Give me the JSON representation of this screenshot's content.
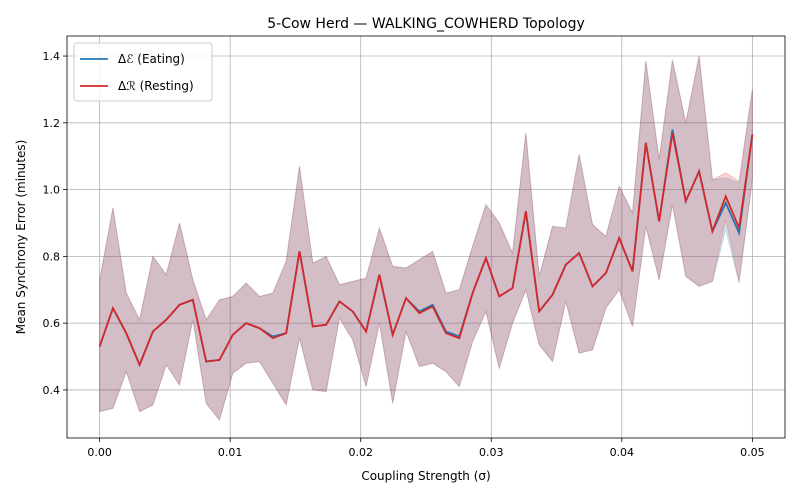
{
  "chart_data": {
    "type": "line",
    "title": "5-Cow Herd — WALKING_COWHERD Topology",
    "xlabel": "Coupling Strength (σ)",
    "ylabel": "Mean Synchrony Error (minutes)",
    "x": [
      0,
      0.00102,
      0.00204,
      0.00306,
      0.00408,
      0.0051,
      0.00612,
      0.00714,
      0.00816,
      0.00918,
      0.0102,
      0.01122,
      0.01224,
      0.01327,
      0.01429,
      0.01531,
      0.01633,
      0.01735,
      0.01837,
      0.01939,
      0.02041,
      0.02143,
      0.02245,
      0.02347,
      0.02449,
      0.02551,
      0.02653,
      0.02755,
      0.02857,
      0.02959,
      0.03061,
      0.03163,
      0.03265,
      0.03367,
      0.03469,
      0.03571,
      0.03673,
      0.03776,
      0.03878,
      0.0398,
      0.04082,
      0.04184,
      0.04286,
      0.04388,
      0.0449,
      0.04592,
      0.04694,
      0.04796,
      0.04898,
      0.05
    ],
    "series": [
      {
        "name": "Δℰ (Eating)",
        "color": "#1f77b4",
        "values": [
          0.53,
          0.645,
          0.57,
          0.475,
          0.575,
          0.61,
          0.655,
          0.67,
          0.485,
          0.49,
          0.565,
          0.6,
          0.585,
          0.56,
          0.57,
          0.815,
          0.59,
          0.595,
          0.665,
          0.635,
          0.575,
          0.745,
          0.565,
          0.675,
          0.635,
          0.655,
          0.575,
          0.56,
          0.69,
          0.795,
          0.68,
          0.705,
          0.935,
          0.635,
          0.685,
          0.775,
          0.81,
          0.71,
          0.75,
          0.855,
          0.755,
          1.14,
          0.905,
          1.18,
          0.965,
          1.055,
          0.875,
          0.96,
          0.87,
          1.165
        ],
        "upper": [
          0.73,
          0.945,
          0.69,
          0.61,
          0.8,
          0.745,
          0.9,
          0.73,
          0.61,
          0.67,
          0.68,
          0.72,
          0.68,
          0.69,
          0.785,
          1.07,
          0.78,
          0.8,
          0.715,
          0.725,
          0.735,
          0.885,
          0.77,
          0.765,
          0.79,
          0.815,
          0.69,
          0.7,
          0.83,
          0.955,
          0.9,
          0.81,
          1.17,
          0.74,
          0.89,
          0.885,
          1.105,
          0.895,
          0.86,
          1.01,
          0.93,
          1.385,
          1.09,
          1.39,
          1.2,
          1.4,
          1.03,
          1.035,
          1.02,
          1.3
        ],
        "lower": [
          0.335,
          0.345,
          0.455,
          0.335,
          0.355,
          0.475,
          0.415,
          0.61,
          0.36,
          0.31,
          0.45,
          0.48,
          0.485,
          0.42,
          0.355,
          0.555,
          0.4,
          0.395,
          0.615,
          0.55,
          0.41,
          0.6,
          0.36,
          0.575,
          0.47,
          0.48,
          0.455,
          0.41,
          0.545,
          0.635,
          0.465,
          0.6,
          0.7,
          0.535,
          0.485,
          0.665,
          0.51,
          0.52,
          0.645,
          0.7,
          0.59,
          0.89,
          0.73,
          0.955,
          0.74,
          0.71,
          0.725,
          0.88,
          0.72,
          1.03
        ]
      },
      {
        "name": "Δℛ (Resting)",
        "color": "#d62728",
        "values": [
          0.53,
          0.645,
          0.57,
          0.475,
          0.575,
          0.61,
          0.655,
          0.67,
          0.485,
          0.49,
          0.565,
          0.6,
          0.585,
          0.555,
          0.57,
          0.815,
          0.59,
          0.595,
          0.665,
          0.635,
          0.575,
          0.745,
          0.565,
          0.675,
          0.63,
          0.65,
          0.57,
          0.555,
          0.69,
          0.795,
          0.68,
          0.705,
          0.935,
          0.635,
          0.685,
          0.775,
          0.81,
          0.71,
          0.75,
          0.855,
          0.755,
          1.14,
          0.905,
          1.17,
          0.965,
          1.055,
          0.875,
          0.98,
          0.885,
          1.165
        ],
        "upper": [
          0.73,
          0.945,
          0.69,
          0.61,
          0.8,
          0.745,
          0.9,
          0.73,
          0.61,
          0.67,
          0.68,
          0.72,
          0.68,
          0.69,
          0.785,
          1.07,
          0.78,
          0.8,
          0.715,
          0.725,
          0.735,
          0.885,
          0.77,
          0.765,
          0.79,
          0.815,
          0.69,
          0.7,
          0.83,
          0.955,
          0.9,
          0.81,
          1.17,
          0.74,
          0.89,
          0.885,
          1.105,
          0.895,
          0.86,
          1.01,
          0.93,
          1.385,
          1.09,
          1.385,
          1.2,
          1.4,
          1.03,
          1.05,
          1.025,
          1.3
        ],
        "lower": [
          0.335,
          0.345,
          0.455,
          0.335,
          0.355,
          0.475,
          0.415,
          0.61,
          0.36,
          0.31,
          0.45,
          0.48,
          0.485,
          0.42,
          0.355,
          0.555,
          0.4,
          0.395,
          0.615,
          0.55,
          0.41,
          0.6,
          0.36,
          0.575,
          0.47,
          0.48,
          0.455,
          0.41,
          0.545,
          0.635,
          0.465,
          0.6,
          0.7,
          0.535,
          0.485,
          0.665,
          0.51,
          0.52,
          0.645,
          0.7,
          0.59,
          0.89,
          0.73,
          0.955,
          0.74,
          0.71,
          0.725,
          0.91,
          0.725,
          1.03
        ]
      }
    ],
    "xlim": [
      -0.0025,
      0.0525
    ],
    "ylim": [
      0.256,
      1.46
    ],
    "xticks": [
      {
        "value": 0,
        "label": "0.00"
      },
      {
        "value": 0.01,
        "label": "0.01"
      },
      {
        "value": 0.02,
        "label": "0.02"
      },
      {
        "value": 0.03,
        "label": "0.03"
      },
      {
        "value": 0.04,
        "label": "0.04"
      },
      {
        "value": 0.05,
        "label": "0.05"
      }
    ],
    "yticks": [
      0.4,
      0.6,
      0.8,
      {
        "value": 1,
        "label": "1.0"
      },
      1.2,
      1.4
    ],
    "grid": true,
    "legend": "upper left"
  }
}
